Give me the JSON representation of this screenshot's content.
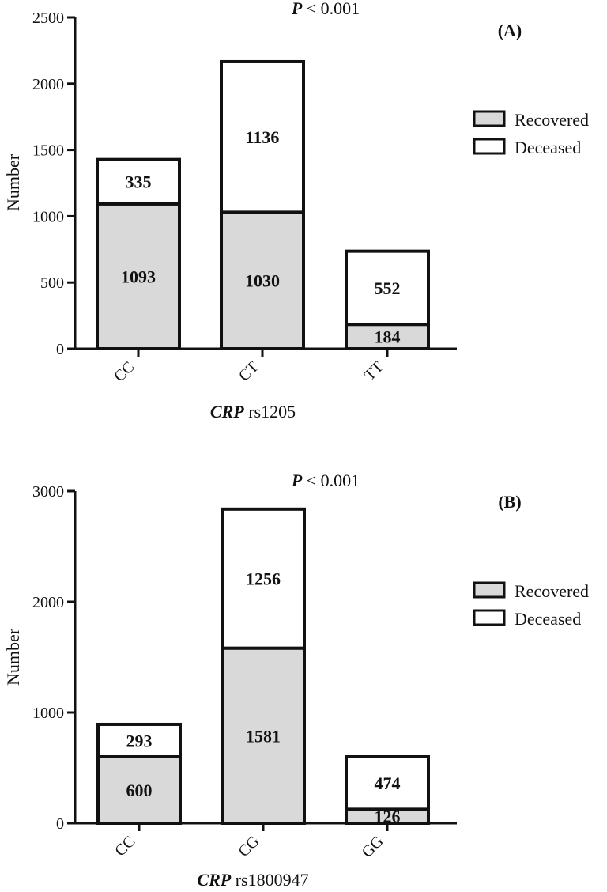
{
  "chart_data": [
    {
      "type": "bar",
      "stacked": true,
      "panel_label": "(A)",
      "annotation": {
        "italic": "P",
        "rest": " < 0.001"
      },
      "xlabel": {
        "italic": "CRP",
        "rest": " rs1205"
      },
      "ylabel": "Number",
      "ylim": [
        0,
        2500
      ],
      "yticks": [
        0,
        500,
        1000,
        1500,
        2000,
        2500
      ],
      "categories": [
        "CC",
        "CT",
        "TT"
      ],
      "series": [
        {
          "name": "Recovered",
          "values": [
            1093,
            1030,
            184
          ],
          "color": "#d9d9d9"
        },
        {
          "name": "Deceased",
          "values": [
            335,
            1136,
            552
          ],
          "color": "#ffffff"
        }
      ],
      "legend": "right"
    },
    {
      "type": "bar",
      "stacked": true,
      "panel_label": "(B)",
      "annotation": {
        "italic": "P",
        "rest": " < 0.001"
      },
      "xlabel": {
        "italic": "CRP",
        "rest": " rs1800947"
      },
      "ylabel": "Number",
      "ylim": [
        0,
        3000
      ],
      "yticks": [
        0,
        1000,
        2000,
        3000
      ],
      "categories": [
        "CC",
        "CG",
        "GG"
      ],
      "series": [
        {
          "name": "Recovered",
          "values": [
            600,
            1581,
            126
          ],
          "color": "#d9d9d9"
        },
        {
          "name": "Deceased",
          "values": [
            293,
            1256,
            474
          ],
          "color": "#ffffff"
        }
      ],
      "legend": "right"
    }
  ]
}
